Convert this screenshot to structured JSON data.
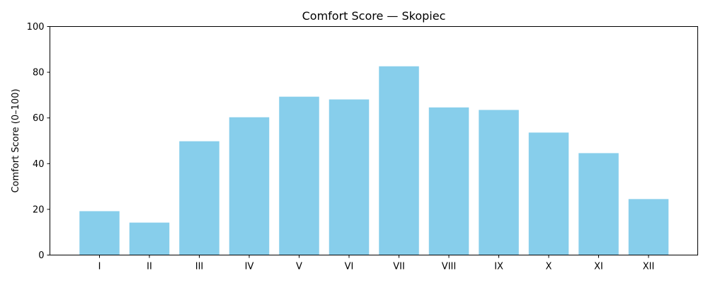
{
  "chart_data": {
    "type": "bar",
    "title": "Comfort Score — Skopiec",
    "xlabel": "",
    "ylabel": "Comfort Score (0–100)",
    "categories": [
      "I",
      "II",
      "III",
      "IV",
      "V",
      "VI",
      "VII",
      "VIII",
      "IX",
      "X",
      "XI",
      "XII"
    ],
    "values": [
      19.2,
      14.2,
      49.8,
      60.3,
      69.3,
      68.1,
      82.6,
      64.6,
      63.5,
      53.6,
      44.6,
      24.5
    ],
    "ylim": [
      0,
      100
    ],
    "yticks": [
      "0",
      "20",
      "40",
      "60",
      "80",
      "100"
    ],
    "grid": false,
    "bar_color": "#87ceeb"
  }
}
